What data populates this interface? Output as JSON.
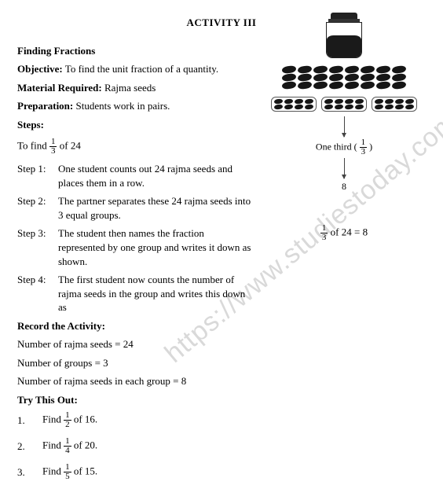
{
  "watermark": "https://www.studiestoday.com",
  "title": "ACTIVITY III",
  "section_heading": "Finding Fractions",
  "objective": {
    "label": "Objective:",
    "text": "To find the unit fraction of a quantity."
  },
  "material": {
    "label": "Material Required:",
    "text": "Rajma seeds"
  },
  "preparation": {
    "label": "Preparation:",
    "text": "Students work in pairs."
  },
  "steps_label": "Steps:",
  "intro": {
    "prefix": "To find ",
    "frac_n": "1",
    "frac_d": "3",
    "suffix": " of 24"
  },
  "steps": [
    {
      "label": "Step 1:",
      "text": "One student counts out 24 rajma seeds and places them in a row."
    },
    {
      "label": "Step 2:",
      "text": "The partner separates these 24 rajma seeds into 3 equal groups."
    },
    {
      "label": "Step 3:",
      "text": "The student then names the fraction represented by one group and writes it down as shown."
    },
    {
      "label": "Step 4:",
      "text": "The first student now counts the number of rajma seeds in the group and writes this down as"
    }
  ],
  "record": {
    "heading": "Record the Activity:",
    "lines": [
      "Number of rajma seeds = 24",
      "Number of groups = 3",
      "Number of rajma seeds in each group = 8"
    ]
  },
  "result": {
    "frac_n": "1",
    "frac_d": "3",
    "text": " of 24 = 8"
  },
  "diagram": {
    "caption_prefix": "One third ( ",
    "caption_frac_n": "1",
    "caption_frac_d": "3",
    "caption_suffix": " )",
    "answer": "8",
    "big_rows": 3,
    "big_cols": 8,
    "groups": 3,
    "group_rows": 2,
    "group_cols": 4
  },
  "try": {
    "heading": "Try This Out:",
    "items": [
      {
        "num": "1.",
        "prefix": "Find ",
        "n": "1",
        "d": "2",
        "suffix": " of 16."
      },
      {
        "num": "2.",
        "prefix": "Find ",
        "n": "1",
        "d": "4",
        "suffix": " of 20."
      },
      {
        "num": "3.",
        "prefix": "Find ",
        "n": "1",
        "d": "5",
        "suffix": " of 15."
      }
    ]
  }
}
